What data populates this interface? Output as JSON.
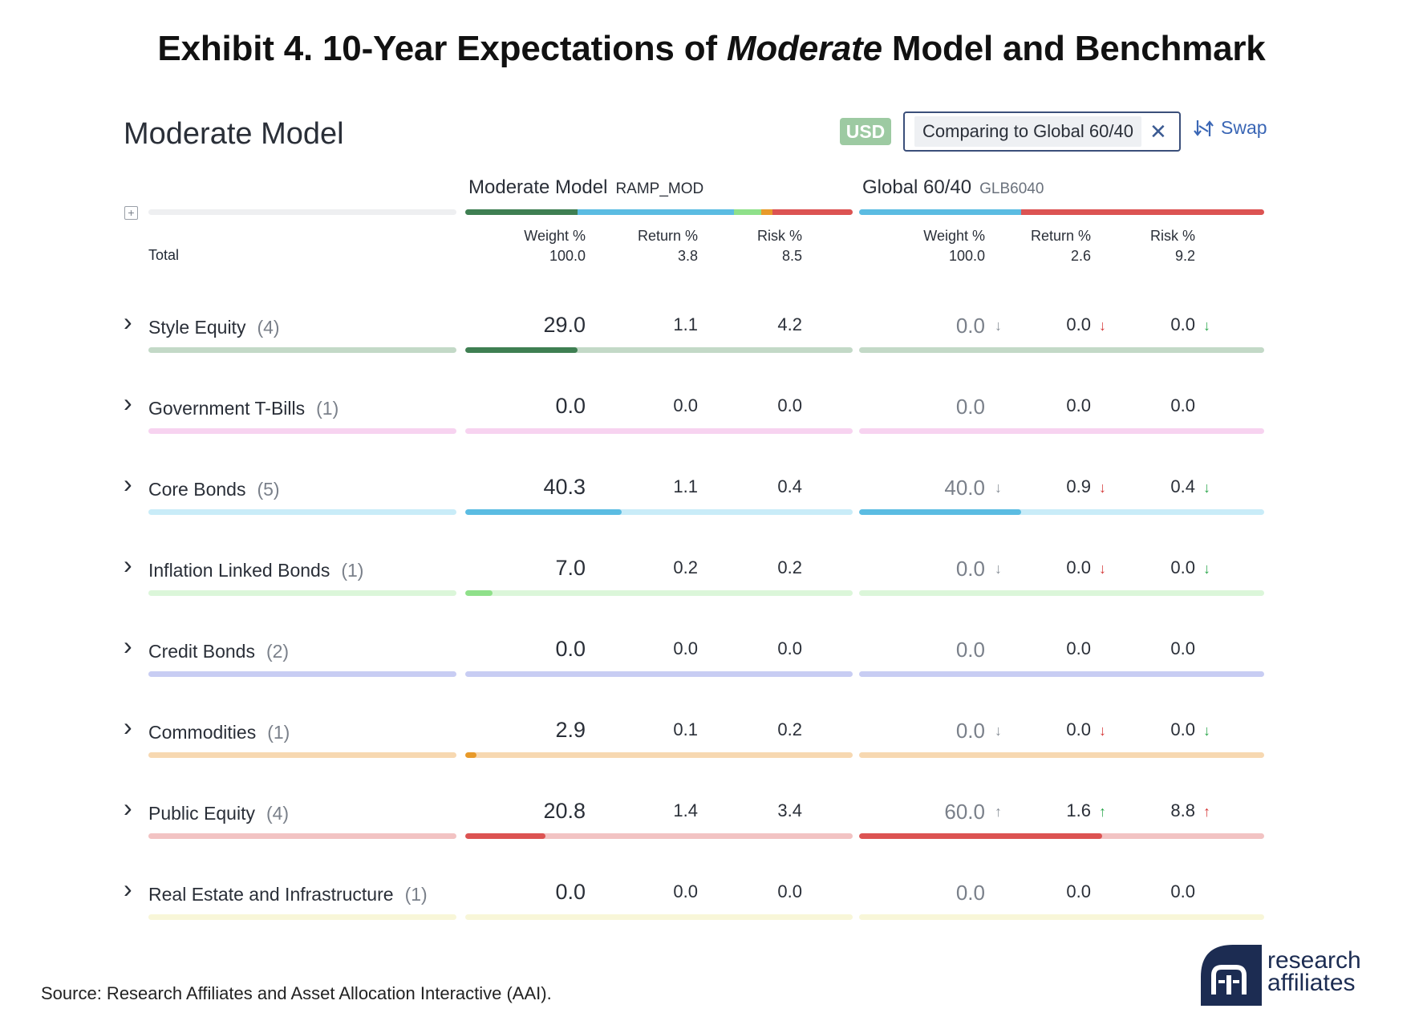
{
  "exhibit": {
    "title_pre": "Exhibit 4. 10-Year Expectations of ",
    "title_em": "Moderate",
    "title_post": " Model and Benchmark"
  },
  "panel": {
    "title": "Moderate Model"
  },
  "toolbar": {
    "currency": "USD",
    "comparing": "Comparing to Global 60/40",
    "close": "✕",
    "swap": "Swap"
  },
  "portfolio": {
    "name": "Moderate Model",
    "code": "RAMP_MOD"
  },
  "benchmark": {
    "name": "Global 60/40",
    "code": "GLB6040"
  },
  "headers": {
    "weight": "Weight %",
    "return": "Return %",
    "risk": "Risk %"
  },
  "totals": {
    "label": "Total",
    "port": {
      "weight": "100.0",
      "return": "3.8",
      "risk": "8.5"
    },
    "bench": {
      "weight": "100.0",
      "return": "2.6",
      "risk": "9.2"
    }
  },
  "colors": {
    "style_equity": "#3f7f52",
    "style_equity_light": "#c3d9c7",
    "t_bills": "#f7d3f0",
    "core_bonds": "#5bbce2",
    "core_bonds_light": "#c9ecf8",
    "inflation": "#8fe08a",
    "inflation_light": "#dbf6d9",
    "credit": "#c8cdf3",
    "commodities": "#e89a2a",
    "commodities_light": "#f7d8b1",
    "public_equity": "#dc5352",
    "public_equity_light": "#f2c3c3",
    "real_estate": "#f8f6d8",
    "arrow_red": "#d63b3b",
    "arrow_green": "#2fa84f",
    "arrow_gray": "#8a9099"
  },
  "rows": [
    {
      "name": "Style Equity",
      "count": "(4)",
      "weight": "29.0",
      "weight_frac": 0.29,
      "ret": "1.1",
      "risk": "4.2",
      "bench_weight": "0.0",
      "bench_frac": 0,
      "bench_ret": "0.0",
      "bench_risk": "0.0",
      "arrows": [
        "↓",
        "↓",
        "↓"
      ],
      "arrow_colors": [
        "arrow_gray",
        "arrow_red",
        "arrow_green"
      ],
      "color": "style_equity",
      "track": "style_equity_light"
    },
    {
      "name": "Government T-Bills",
      "count": "(1)",
      "weight": "0.0",
      "weight_frac": 0,
      "ret": "0.0",
      "risk": "0.0",
      "bench_weight": "0.0",
      "bench_frac": 0,
      "bench_ret": "0.0",
      "bench_risk": "0.0",
      "arrows": [
        "",
        "",
        ""
      ],
      "arrow_colors": [
        "arrow_gray",
        "arrow_gray",
        "arrow_gray"
      ],
      "color": "t_bills",
      "track": "t_bills"
    },
    {
      "name": "Core Bonds",
      "count": "(5)",
      "weight": "40.3",
      "weight_frac": 0.403,
      "ret": "1.1",
      "risk": "0.4",
      "bench_weight": "40.0",
      "bench_frac": 0.4,
      "bench_ret": "0.9",
      "bench_risk": "0.4",
      "arrows": [
        "↓",
        "↓",
        "↓"
      ],
      "arrow_colors": [
        "arrow_gray",
        "arrow_red",
        "arrow_green"
      ],
      "color": "core_bonds",
      "track": "core_bonds_light"
    },
    {
      "name": "Inflation Linked Bonds",
      "count": "(1)",
      "weight": "7.0",
      "weight_frac": 0.07,
      "ret": "0.2",
      "risk": "0.2",
      "bench_weight": "0.0",
      "bench_frac": 0,
      "bench_ret": "0.0",
      "bench_risk": "0.0",
      "arrows": [
        "↓",
        "↓",
        "↓"
      ],
      "arrow_colors": [
        "arrow_gray",
        "arrow_red",
        "arrow_green"
      ],
      "color": "inflation",
      "track": "inflation_light"
    },
    {
      "name": "Credit Bonds",
      "count": "(2)",
      "weight": "0.0",
      "weight_frac": 0,
      "ret": "0.0",
      "risk": "0.0",
      "bench_weight": "0.0",
      "bench_frac": 0,
      "bench_ret": "0.0",
      "bench_risk": "0.0",
      "arrows": [
        "",
        "",
        ""
      ],
      "arrow_colors": [
        "arrow_gray",
        "arrow_gray",
        "arrow_gray"
      ],
      "color": "credit",
      "track": "credit"
    },
    {
      "name": "Commodities",
      "count": "(1)",
      "weight": "2.9",
      "weight_frac": 0.029,
      "ret": "0.1",
      "risk": "0.2",
      "bench_weight": "0.0",
      "bench_frac": 0,
      "bench_ret": "0.0",
      "bench_risk": "0.0",
      "arrows": [
        "↓",
        "↓",
        "↓"
      ],
      "arrow_colors": [
        "arrow_gray",
        "arrow_red",
        "arrow_green"
      ],
      "color": "commodities",
      "track": "commodities_light"
    },
    {
      "name": "Public Equity",
      "count": "(4)",
      "weight": "20.8",
      "weight_frac": 0.208,
      "ret": "1.4",
      "risk": "3.4",
      "bench_weight": "60.0",
      "bench_frac": 0.6,
      "bench_ret": "1.6",
      "bench_risk": "8.8",
      "arrows": [
        "↑",
        "↑",
        "↑"
      ],
      "arrow_colors": [
        "arrow_gray",
        "arrow_green",
        "arrow_red"
      ],
      "color": "public_equity",
      "track": "public_equity_light"
    },
    {
      "name": "Real Estate and Infrastructure",
      "count": "(1)",
      "weight": "0.0",
      "weight_frac": 0,
      "ret": "0.0",
      "risk": "0.0",
      "bench_weight": "0.0",
      "bench_frac": 0,
      "bench_ret": "0.0",
      "bench_risk": "0.0",
      "arrows": [
        "",
        "",
        ""
      ],
      "arrow_colors": [
        "arrow_gray",
        "arrow_gray",
        "arrow_gray"
      ],
      "color": "real_estate",
      "track": "real_estate"
    }
  ],
  "source": "Source: Research Affiliates and Asset Allocation Interactive (AAI).",
  "logo": {
    "line1": "research",
    "line2": "affiliates"
  }
}
